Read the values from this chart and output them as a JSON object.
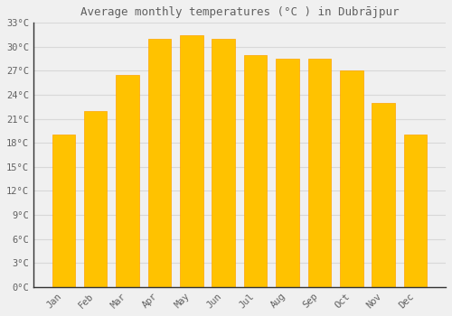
{
  "title": "Average monthly temperatures (°C ) in Dubrājpur",
  "months": [
    "Jan",
    "Feb",
    "Mar",
    "Apr",
    "May",
    "Jun",
    "Jul",
    "Aug",
    "Sep",
    "Oct",
    "Nov",
    "Dec"
  ],
  "values": [
    19.0,
    22.0,
    26.5,
    31.0,
    31.5,
    31.0,
    29.0,
    28.5,
    28.5,
    27.0,
    23.0,
    19.0
  ],
  "bar_color": "#FFC200",
  "bar_edge_color": "#FFA500",
  "background_color": "#f0f0f0",
  "grid_color": "#d8d8d8",
  "text_color": "#606060",
  "ylim": [
    0,
    33
  ],
  "yticks": [
    0,
    3,
    6,
    9,
    12,
    15,
    18,
    21,
    24,
    27,
    30,
    33
  ],
  "title_fontsize": 9,
  "tick_fontsize": 7.5,
  "bar_width": 0.72
}
